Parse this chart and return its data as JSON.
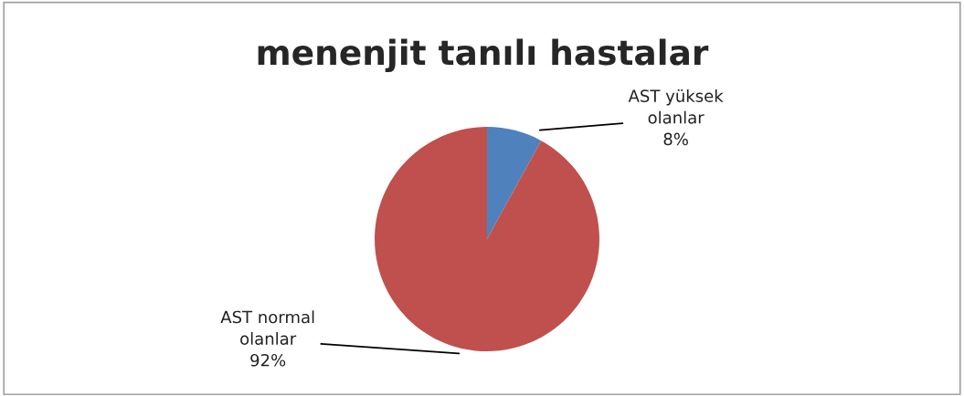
{
  "chart_data": {
    "type": "pie",
    "title": "menenjit tanılı hastalar",
    "categories": [
      "AST yüksek olanlar",
      "AST normal olanlar"
    ],
    "values": [
      8,
      92
    ],
    "colors": [
      "#4f81bd",
      "#c0504d"
    ],
    "value_labels": [
      "8%",
      "92%"
    ],
    "legend": false
  }
}
